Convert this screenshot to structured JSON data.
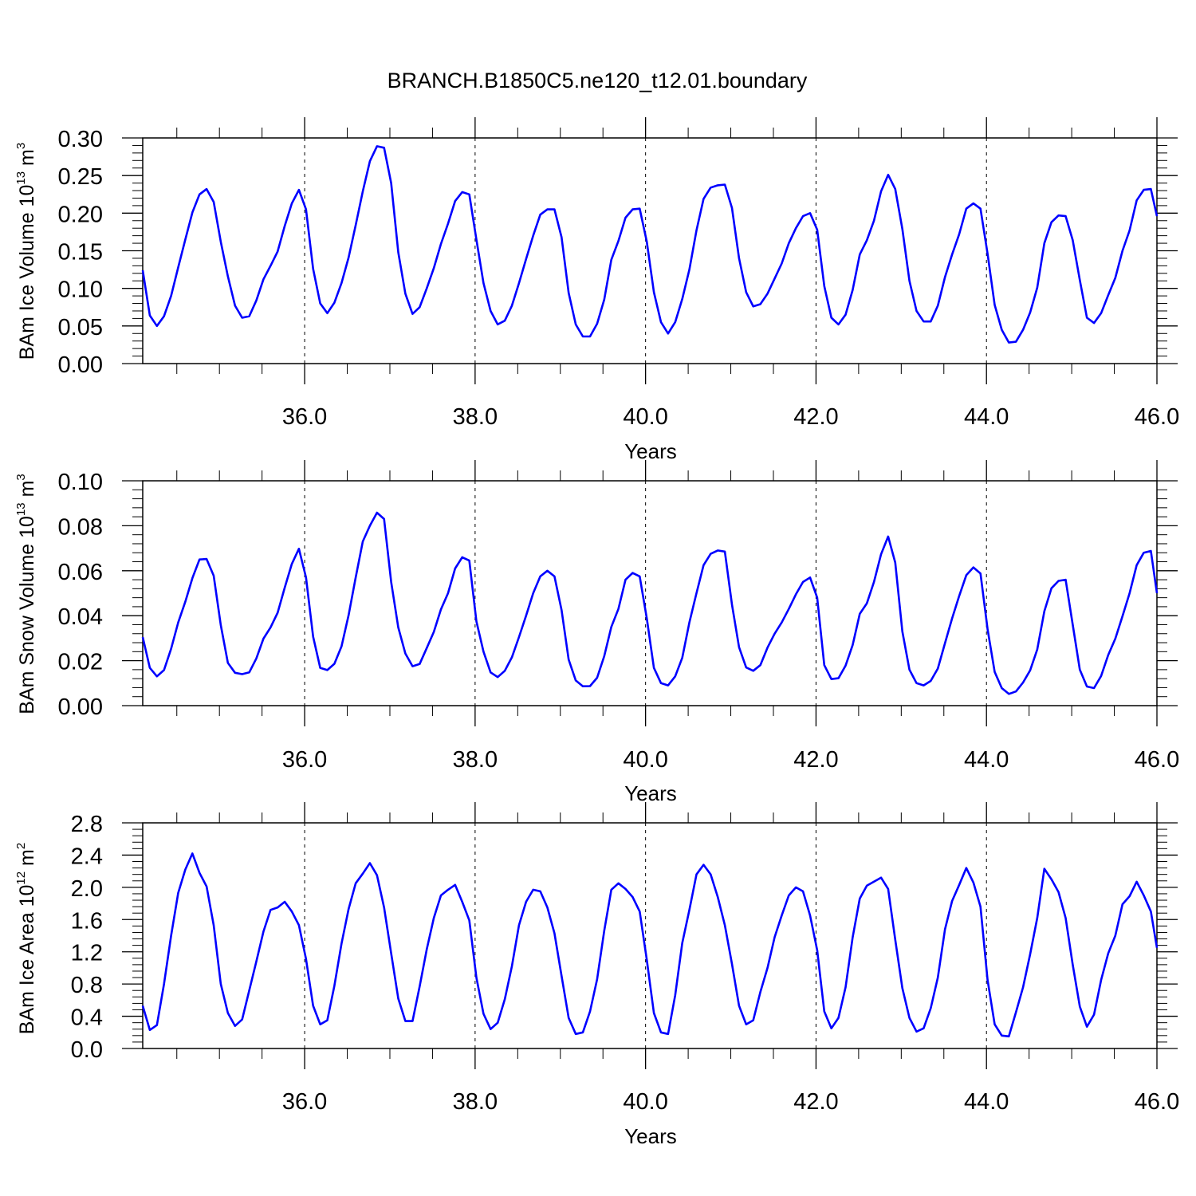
{
  "figure": {
    "title": "BRANCH.B1850C5.ne120_t12.01.boundary"
  },
  "chart_data": [
    {
      "type": "line",
      "title": "",
      "xlabel": "Years",
      "ylabel": {
        "text": "BAm Ice Volume 10",
        "exp": "13",
        "unit": " m",
        "unit_exp": "3"
      },
      "xlim": [
        34.1,
        46.0
      ],
      "ylim": [
        0.0,
        0.3
      ],
      "xticks": [
        "36.0",
        "38.0",
        "40.0",
        "42.0",
        "44.0",
        "46.0"
      ],
      "yticks": [
        "0.00",
        "0.05",
        "0.10",
        "0.15",
        "0.20",
        "0.25",
        "0.30"
      ],
      "grid": "dashed vertical at labeled x ticks",
      "color": "#0000ff",
      "series": [
        {
          "x_start": 34.1,
          "x_step": 0.0833,
          "values": [
            0.124,
            0.064,
            0.05,
            0.063,
            0.09,
            0.128,
            0.165,
            0.201,
            0.225,
            0.232,
            0.215,
            0.162,
            0.116,
            0.077,
            0.061,
            0.063,
            0.084,
            0.112,
            0.13,
            0.149,
            0.183,
            0.213,
            0.231,
            0.205,
            0.126,
            0.08,
            0.067,
            0.081,
            0.107,
            0.141,
            0.184,
            0.229,
            0.269,
            0.289,
            0.287,
            0.24,
            0.148,
            0.093,
            0.066,
            0.075,
            0.1,
            0.127,
            0.159,
            0.186,
            0.216,
            0.228,
            0.225,
            0.165,
            0.107,
            0.07,
            0.052,
            0.057,
            0.077,
            0.107,
            0.139,
            0.17,
            0.198,
            0.205,
            0.205,
            0.168,
            0.094,
            0.052,
            0.036,
            0.036,
            0.053,
            0.085,
            0.138,
            0.163,
            0.194,
            0.205,
            0.206,
            0.162,
            0.095,
            0.055,
            0.04,
            0.055,
            0.086,
            0.125,
            0.177,
            0.219,
            0.234,
            0.237,
            0.238,
            0.207,
            0.14,
            0.095,
            0.076,
            0.079,
            0.093,
            0.113,
            0.133,
            0.16,
            0.18,
            0.196,
            0.2,
            0.178,
            0.103,
            0.061,
            0.052,
            0.065,
            0.098,
            0.145,
            0.164,
            0.19,
            0.229,
            0.251,
            0.232,
            0.179,
            0.11,
            0.07,
            0.056,
            0.056,
            0.077,
            0.115,
            0.145,
            0.172,
            0.206,
            0.213,
            0.206,
            0.146,
            0.078,
            0.045,
            0.028,
            0.029,
            0.045,
            0.068,
            0.101,
            0.16,
            0.188,
            0.197,
            0.196,
            0.164,
            0.111,
            0.061,
            0.054,
            0.067,
            0.091,
            0.114,
            0.15,
            0.177,
            0.217,
            0.231,
            0.232,
            0.196
          ]
        }
      ]
    },
    {
      "type": "line",
      "title": "",
      "xlabel": "Years",
      "ylabel": {
        "text": "BAm Snow Volume 10",
        "exp": "13",
        "unit": " m",
        "unit_exp": "3"
      },
      "xlim": [
        34.1,
        46.0
      ],
      "ylim": [
        0.0,
        0.1
      ],
      "xticks": [
        "36.0",
        "38.0",
        "40.0",
        "42.0",
        "44.0",
        "46.0"
      ],
      "yticks": [
        "0.00",
        "0.02",
        "0.04",
        "0.06",
        "0.08",
        "0.10"
      ],
      "grid": "dashed vertical at labeled x ticks",
      "color": "#0000ff",
      "series": [
        {
          "x_start": 34.1,
          "x_step": 0.0833,
          "values": [
            0.0305,
            0.0168,
            0.013,
            0.0158,
            0.0253,
            0.037,
            0.0462,
            0.0567,
            0.065,
            0.0652,
            0.0578,
            0.0358,
            0.019,
            0.0146,
            0.014,
            0.0148,
            0.021,
            0.0298,
            0.0348,
            0.0413,
            0.0525,
            0.063,
            0.0698,
            0.057,
            0.0307,
            0.0168,
            0.0158,
            0.0186,
            0.0263,
            0.0402,
            0.057,
            0.073,
            0.08,
            0.0858,
            0.083,
            0.055,
            0.0348,
            0.0232,
            0.0175,
            0.0185,
            0.0256,
            0.0328,
            0.0428,
            0.05,
            0.061,
            0.066,
            0.0645,
            0.0375,
            0.024,
            0.0148,
            0.0127,
            0.0155,
            0.0215,
            0.0305,
            0.04,
            0.05,
            0.0575,
            0.06,
            0.0575,
            0.0425,
            0.0205,
            0.0112,
            0.0086,
            0.0087,
            0.0124,
            0.022,
            0.035,
            0.043,
            0.056,
            0.059,
            0.0575,
            0.0388,
            0.0168,
            0.01,
            0.009,
            0.013,
            0.0213,
            0.037,
            0.05,
            0.0625,
            0.0675,
            0.069,
            0.0685,
            0.045,
            0.026,
            0.017,
            0.0155,
            0.018,
            0.0258,
            0.032,
            0.037,
            0.043,
            0.0495,
            0.055,
            0.057,
            0.048,
            0.018,
            0.0118,
            0.0122,
            0.0178,
            0.027,
            0.0408,
            0.0455,
            0.055,
            0.0673,
            0.0752,
            0.0636,
            0.033,
            0.016,
            0.01,
            0.009,
            0.011,
            0.0165,
            0.0278,
            0.0388,
            0.0488,
            0.058,
            0.0615,
            0.0588,
            0.034,
            0.015,
            0.0078,
            0.0052,
            0.0063,
            0.0103,
            0.0157,
            0.025,
            0.042,
            0.0522,
            0.0555,
            0.056,
            0.036,
            0.016,
            0.0085,
            0.0078,
            0.0132,
            0.0225,
            0.0298,
            0.0398,
            0.05,
            0.0625,
            0.068,
            0.0688,
            0.05
          ]
        }
      ]
    },
    {
      "type": "line",
      "title": "",
      "xlabel": "Years",
      "ylabel": {
        "text": "BAm Ice Area 10",
        "exp": "12",
        "unit": " m",
        "unit_exp": "2"
      },
      "xlim": [
        34.1,
        46.0
      ],
      "ylim": [
        0.0,
        2.8
      ],
      "xticks": [
        "36.0",
        "38.0",
        "40.0",
        "42.0",
        "44.0",
        "46.0"
      ],
      "yticks": [
        "0.0",
        "0.4",
        "0.8",
        "1.2",
        "1.6",
        "2.0",
        "2.4",
        "2.8"
      ],
      "grid": "dashed vertical at labeled x ticks",
      "color": "#0000ff",
      "series": [
        {
          "x_start": 34.1,
          "x_step": 0.0833,
          "values": [
            0.53,
            0.23,
            0.29,
            0.8,
            1.4,
            1.93,
            2.22,
            2.42,
            2.18,
            2.01,
            1.53,
            0.8,
            0.44,
            0.28,
            0.36,
            0.72,
            1.08,
            1.45,
            1.72,
            1.75,
            1.82,
            1.7,
            1.53,
            1.11,
            0.53,
            0.3,
            0.35,
            0.78,
            1.3,
            1.73,
            2.05,
            2.17,
            2.3,
            2.15,
            1.75,
            1.18,
            0.62,
            0.34,
            0.34,
            0.77,
            1.23,
            1.62,
            1.9,
            1.97,
            2.03,
            1.82,
            1.59,
            0.88,
            0.43,
            0.24,
            0.32,
            0.61,
            1.02,
            1.53,
            1.82,
            1.97,
            1.95,
            1.75,
            1.43,
            0.9,
            0.38,
            0.18,
            0.2,
            0.46,
            0.86,
            1.46,
            1.97,
            2.05,
            1.98,
            1.88,
            1.7,
            1.1,
            0.44,
            0.2,
            0.18,
            0.66,
            1.31,
            1.72,
            2.16,
            2.28,
            2.16,
            1.88,
            1.53,
            1.05,
            0.53,
            0.3,
            0.35,
            0.7,
            1.0,
            1.38,
            1.65,
            1.9,
            2.0,
            1.95,
            1.65,
            1.22,
            0.46,
            0.25,
            0.38,
            0.76,
            1.38,
            1.86,
            2.02,
            2.07,
            2.12,
            1.98,
            1.35,
            0.75,
            0.38,
            0.21,
            0.25,
            0.5,
            0.88,
            1.48,
            1.83,
            2.03,
            2.24,
            2.06,
            1.76,
            0.85,
            0.3,
            0.16,
            0.15,
            0.45,
            0.76,
            1.17,
            1.62,
            2.23,
            2.1,
            1.94,
            1.62,
            1.04,
            0.52,
            0.27,
            0.42,
            0.85,
            1.18,
            1.4,
            1.79,
            1.89,
            2.07,
            1.9,
            1.7,
            1.25
          ]
        }
      ]
    }
  ]
}
